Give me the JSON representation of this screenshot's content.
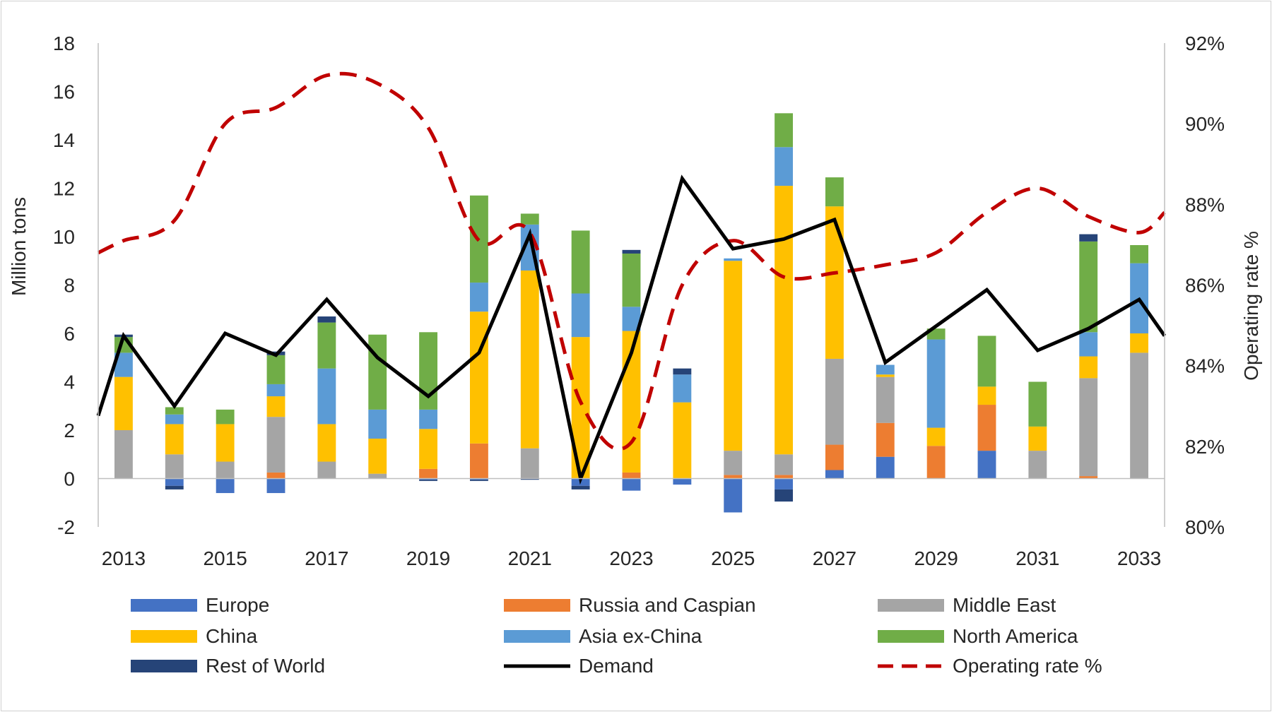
{
  "chart_data": {
    "type": "bar",
    "stacked": true,
    "y_left": {
      "label": "Million tons",
      "ylim": [
        -2,
        18
      ],
      "ticks": [
        "-2",
        "0",
        "2",
        "4",
        "6",
        "8",
        "10",
        "12",
        "14",
        "16",
        "18"
      ]
    },
    "y_right": {
      "label": "Operating rate %",
      "ylim": [
        80,
        92
      ],
      "ticks": [
        "80%",
        "82%",
        "84%",
        "86%",
        "88%",
        "90%",
        "92%"
      ]
    },
    "x_tick_labels": [
      "2013",
      "2015",
      "2017",
      "2019",
      "2021",
      "2023",
      "2025",
      "2027",
      "2029",
      "2031",
      "2033"
    ],
    "categories": [
      "2013",
      "2014",
      "2015",
      "2016",
      "2017",
      "2018",
      "2019",
      "2020",
      "2021",
      "2022",
      "2023",
      "2024",
      "2025",
      "2026",
      "2027",
      "2028",
      "2029",
      "2030",
      "2031",
      "2032",
      "2033"
    ],
    "series": [
      {
        "name": "Europe",
        "color": "#4472C4",
        "values": [
          0,
          -0.3,
          -0.6,
          -0.6,
          0,
          0,
          -0.05,
          -0.05,
          0,
          -0.3,
          -0.5,
          -0.25,
          -1.4,
          -0.45,
          0.35,
          0.9,
          0,
          1.15,
          0,
          0,
          0
        ]
      },
      {
        "name": "Russia and Caspian",
        "color": "#ED7D31",
        "values": [
          0,
          0,
          0,
          0.25,
          0,
          0,
          0.4,
          1.45,
          0,
          0,
          0.25,
          0,
          0.15,
          0.15,
          1.05,
          1.4,
          1.35,
          1.9,
          0,
          0.1,
          0
        ]
      },
      {
        "name": "Middle East",
        "color": "#A5A5A5",
        "values": [
          2.0,
          1.0,
          0.7,
          2.3,
          0.7,
          0.2,
          0,
          0,
          1.25,
          0,
          0,
          0,
          1.0,
          0.85,
          3.55,
          1.9,
          0,
          0,
          1.15,
          4.05,
          5.2
        ]
      },
      {
        "name": "China",
        "color": "#FFC000",
        "values": [
          2.2,
          1.25,
          1.55,
          0.85,
          1.55,
          1.45,
          1.65,
          5.45,
          7.35,
          5.85,
          5.85,
          3.15,
          7.85,
          11.1,
          6.3,
          0.1,
          0.75,
          0.75,
          1.0,
          0.9,
          0.8
        ]
      },
      {
        "name": "Asia ex-China",
        "color": "#5B9BD5",
        "values": [
          1.0,
          0.4,
          0,
          0.5,
          2.3,
          1.2,
          0.8,
          1.2,
          1.9,
          1.8,
          1.0,
          1.15,
          0.1,
          1.6,
          0,
          0.4,
          3.65,
          0,
          0,
          1.0,
          2.9
        ]
      },
      {
        "name": "North America",
        "color": "#70AD47",
        "values": [
          0.65,
          0.3,
          0.6,
          1.2,
          1.9,
          3.1,
          3.2,
          3.6,
          0.45,
          2.6,
          2.2,
          0,
          0,
          1.4,
          1.2,
          0,
          0.45,
          2.1,
          1.85,
          3.75,
          0.75
        ]
      },
      {
        "name": "Rest of World",
        "color": "#264478",
        "values": [
          0.1,
          -0.15,
          0,
          0.15,
          0.25,
          0,
          -0.05,
          -0.05,
          -0.05,
          -0.15,
          0.15,
          0.25,
          0,
          -0.5,
          0,
          0,
          0,
          0,
          0,
          0.3,
          0
        ]
      }
    ],
    "demand": {
      "name": "Demand",
      "color": "#000000",
      "start_value": 2.6,
      "end_value": 5.9,
      "values": [
        5.9,
        3.0,
        6.0,
        5.1,
        7.4,
        5.0,
        3.4,
        5.2,
        10.1,
        0,
        5.2,
        12.4,
        9.5,
        9.9,
        10.7,
        4.8,
        6.3,
        7.8,
        5.3,
        6.2,
        7.4
      ]
    },
    "operating_rate": {
      "name": "Operating rate %",
      "color": "#C00000",
      "start_value": 86.8,
      "end_value": 87.8,
      "values": [
        87.1,
        87.6,
        90.0,
        90.4,
        91.2,
        91.0,
        89.9,
        87.1,
        87.3,
        83.1,
        82.1,
        86.0,
        87.1,
        86.2,
        86.3,
        86.5,
        86.8,
        87.8,
        88.4,
        87.7,
        87.3
      ]
    },
    "legend": [
      "Europe",
      "Russia and Caspian",
      "Middle East",
      "China",
      "Asia ex-China",
      "North America",
      "Rest of World",
      "Demand",
      "Operating rate %"
    ]
  }
}
